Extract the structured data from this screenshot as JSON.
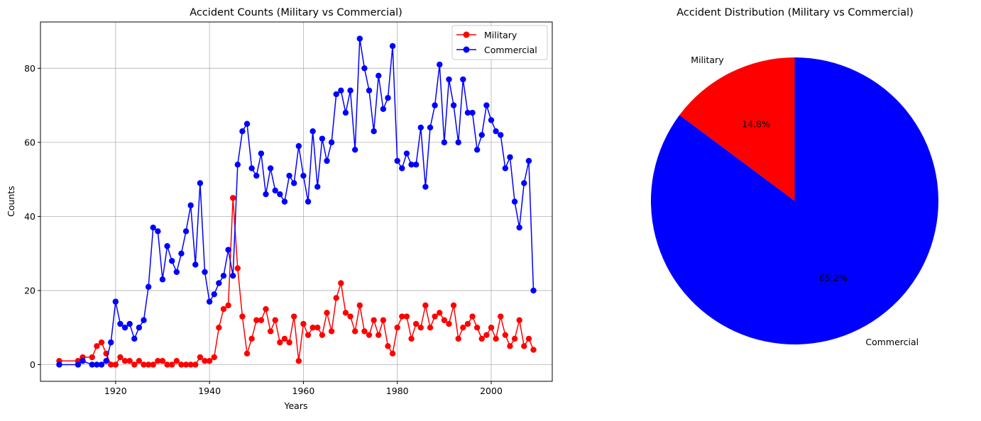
{
  "chart_data": [
    {
      "type": "line",
      "title": "Accident Counts (Military vs Commercial)",
      "xlabel": "Years",
      "ylabel": "Counts",
      "xlim": [
        1904,
        2013
      ],
      "ylim": [
        -4.5,
        92.5
      ],
      "xticks": [
        1920,
        1940,
        1960,
        1980,
        2000
      ],
      "yticks": [
        0,
        20,
        40,
        60,
        80
      ],
      "grid": true,
      "legend_position": "top-right",
      "series": [
        {
          "name": "Military",
          "color": "#ff0000",
          "marker": "circle",
          "x": [
            1908,
            1912,
            1913,
            1915,
            1916,
            1917,
            1918,
            1919,
            1920,
            1921,
            1922,
            1923,
            1924,
            1925,
            1926,
            1927,
            1928,
            1929,
            1930,
            1931,
            1932,
            1933,
            1934,
            1935,
            1936,
            1937,
            1938,
            1939,
            1940,
            1941,
            1942,
            1943,
            1944,
            1945,
            1946,
            1947,
            1948,
            1949,
            1950,
            1951,
            1952,
            1953,
            1954,
            1955,
            1956,
            1957,
            1958,
            1959,
            1960,
            1961,
            1962,
            1963,
            1964,
            1965,
            1966,
            1967,
            1968,
            1969,
            1970,
            1971,
            1972,
            1973,
            1974,
            1975,
            1976,
            1977,
            1978,
            1979,
            1980,
            1981,
            1982,
            1983,
            1984,
            1985,
            1986,
            1987,
            1988,
            1989,
            1990,
            1991,
            1992,
            1993,
            1994,
            1995,
            1996,
            1997,
            1998,
            1999,
            2000,
            2001,
            2002,
            2003,
            2004,
            2005,
            2006,
            2007,
            2008,
            2009
          ],
          "y": [
            1,
            1,
            2,
            2,
            5,
            6,
            3,
            0,
            0,
            2,
            1,
            1,
            0,
            1,
            0,
            0,
            0,
            1,
            1,
            0,
            0,
            1,
            0,
            0,
            0,
            0,
            2,
            1,
            1,
            2,
            10,
            15,
            16,
            45,
            26,
            13,
            3,
            7,
            12,
            12,
            15,
            9,
            12,
            6,
            7,
            6,
            13,
            1,
            11,
            8,
            10,
            10,
            8,
            14,
            9,
            18,
            22,
            14,
            13,
            9,
            16,
            9,
            8,
            12,
            8,
            12,
            5,
            3,
            10,
            13,
            13,
            7,
            11,
            10,
            16,
            10,
            13,
            14,
            12,
            11,
            16,
            7,
            10,
            11,
            13,
            10,
            7,
            8,
            10,
            7,
            13,
            8,
            5,
            7,
            12,
            5,
            7,
            4
          ]
        },
        {
          "name": "Commercial",
          "color": "#0000ff",
          "marker": "circle",
          "x": [
            1908,
            1912,
            1913,
            1915,
            1916,
            1917,
            1918,
            1919,
            1920,
            1921,
            1922,
            1923,
            1924,
            1925,
            1926,
            1927,
            1928,
            1929,
            1930,
            1931,
            1932,
            1933,
            1934,
            1935,
            1936,
            1937,
            1938,
            1939,
            1940,
            1941,
            1942,
            1943,
            1944,
            1945,
            1946,
            1947,
            1948,
            1949,
            1950,
            1951,
            1952,
            1953,
            1954,
            1955,
            1956,
            1957,
            1958,
            1959,
            1960,
            1961,
            1962,
            1963,
            1964,
            1965,
            1966,
            1967,
            1968,
            1969,
            1970,
            1971,
            1972,
            1973,
            1974,
            1975,
            1976,
            1977,
            1978,
            1979,
            1980,
            1981,
            1982,
            1983,
            1984,
            1985,
            1986,
            1987,
            1988,
            1989,
            1990,
            1991,
            1992,
            1993,
            1994,
            1995,
            1996,
            1997,
            1998,
            1999,
            2000,
            2001,
            2002,
            2003,
            2004,
            2005,
            2006,
            2007,
            2008,
            2009
          ],
          "y": [
            0,
            0,
            1,
            0,
            0,
            0,
            1,
            6,
            17,
            11,
            10,
            11,
            7,
            10,
            12,
            21,
            37,
            36,
            23,
            32,
            28,
            25,
            30,
            36,
            43,
            27,
            49,
            25,
            17,
            19,
            22,
            24,
            31,
            24,
            54,
            63,
            65,
            53,
            51,
            57,
            46,
            53,
            47,
            46,
            44,
            51,
            49,
            59,
            51,
            44,
            63,
            48,
            61,
            55,
            60,
            73,
            74,
            68,
            74,
            58,
            88,
            80,
            74,
            63,
            78,
            69,
            72,
            86,
            55,
            53,
            57,
            54,
            54,
            64,
            48,
            64,
            70,
            81,
            60,
            77,
            70,
            60,
            77,
            68,
            68,
            58,
            62,
            70,
            66,
            63,
            62,
            53,
            56,
            44,
            37,
            49,
            55,
            20
          ]
        }
      ]
    },
    {
      "type": "pie",
      "title": "Accident Distribution (Military vs Commercial)",
      "labels": [
        "Military",
        "Commercial"
      ],
      "values": [
        14.8,
        85.2
      ],
      "pct_labels": [
        "14.8%",
        "85.2%"
      ],
      "colors": [
        "#ff0000",
        "#0000ff"
      ],
      "start_angle_deg": 90,
      "direction": "counterclockwise"
    }
  ]
}
